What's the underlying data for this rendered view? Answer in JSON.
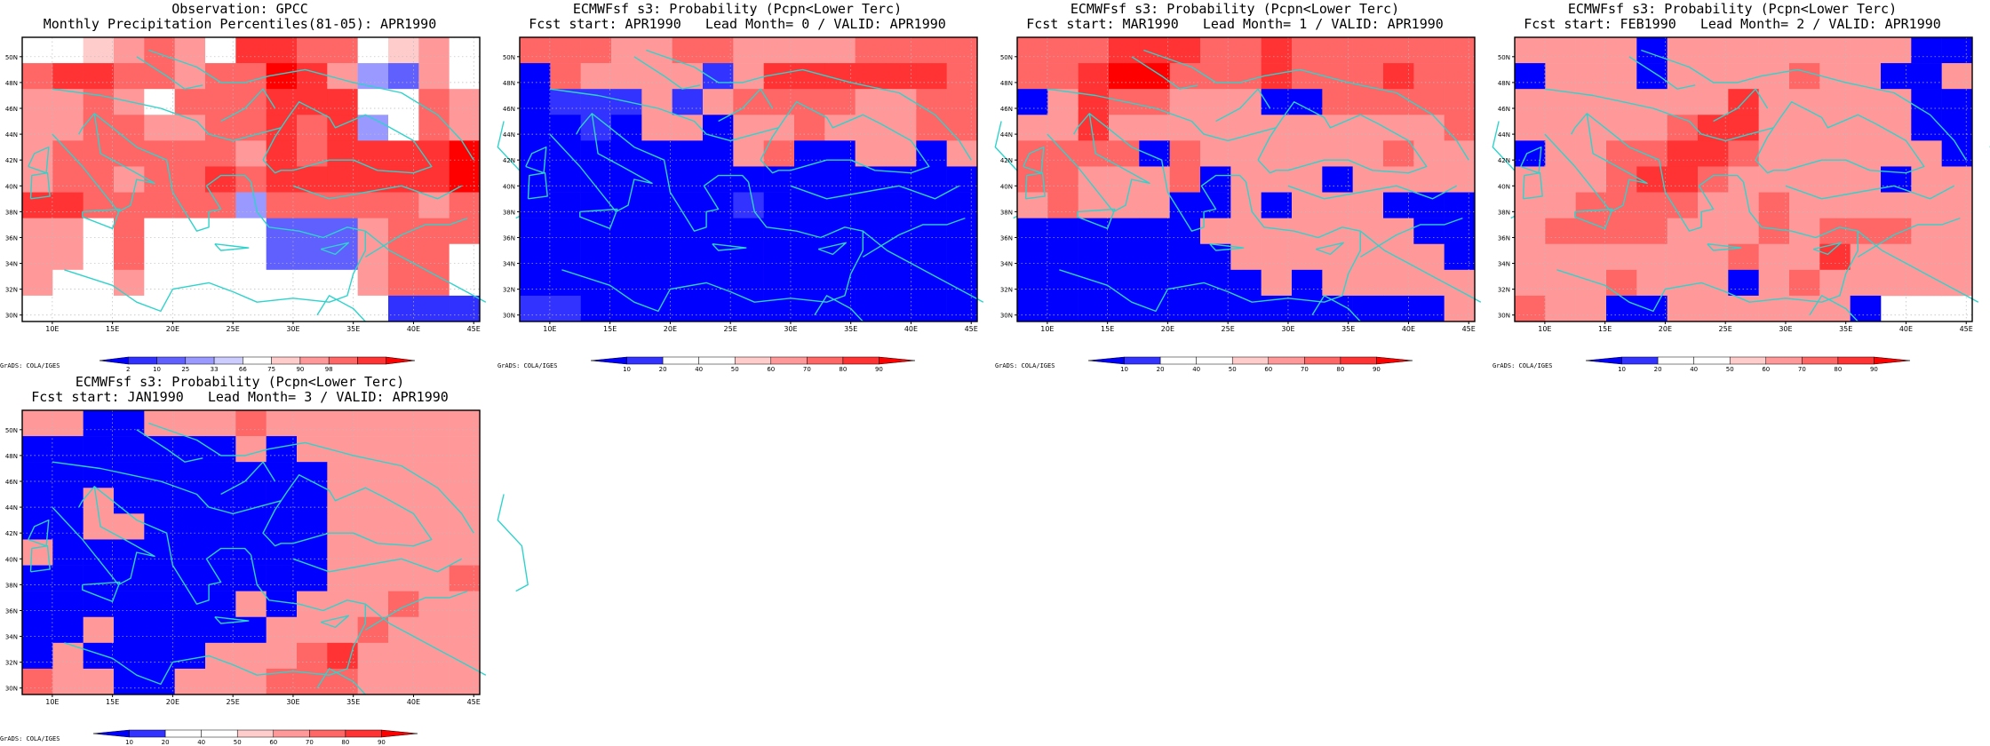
{
  "figure": {
    "credit": "GrADS: COLA/IGES"
  },
  "scales": {
    "percentile": {
      "colors": [
        "#0000ff",
        "#3030ff",
        "#6060ff",
        "#9999ff",
        "#ccccff",
        "#ffffff",
        "#ffcccc",
        "#ff9999",
        "#ff6666",
        "#ff3333",
        "#ff0000"
      ],
      "labels": [
        "2",
        "10",
        "25",
        "33",
        "66",
        "75",
        "90",
        "98"
      ]
    },
    "probability": {
      "colors": [
        "#0000ff",
        "#3333ff",
        "#ffffff",
        "#ffffff",
        "#ffcccc",
        "#ff9999",
        "#ff6666",
        "#ff3333",
        "#ff0000"
      ],
      "labels": [
        "10",
        "20",
        "40",
        "50",
        "60",
        "70",
        "80",
        "90"
      ]
    }
  },
  "colors": {
    "coast": "#2fd3cc",
    "frame": "#000000",
    "grid": "#bbbbbb"
  },
  "chart_data": [
    {
      "type": "heatmap",
      "title": "Observation: GPCC",
      "subtitle": "Monthly Precipitation Percentiles(81-05): APR1990",
      "scale": "percentile",
      "x_ticks": [
        "10E",
        "15E",
        "20E",
        "25E",
        "30E",
        "35E",
        "40E",
        "45E"
      ],
      "y_ticks": [
        "30N",
        "32N",
        "34N",
        "36N",
        "38N",
        "40N",
        "42N",
        "44N",
        "46N",
        "48N",
        "50N"
      ],
      "xlim": [
        7.5,
        45.5
      ],
      "ylim": [
        29.5,
        51.5
      ],
      "grid_cells": [
        "WWRRRRWRRRRRWRR",
        "RRRRRRRRRRRBBRW",
        "RRRRWRRRRRWWWRR",
        "RRRRRRRRRRBWRRR",
        "RRRRRRRRRRRRRRR",
        "RRRRRRRRRRRRRRR",
        "RRRRRBRRWRRRRRR",
        "RRWRWWWWBBBRRRR",
        "RRWRWWWWBBBRRRW",
        "RWWRWWWWWWWRRRW",
        "WWWWWWWWWWWBBBW"
      ],
      "grid_levels": [
        5,
        5,
        6,
        7,
        8,
        7,
        5,
        9,
        9,
        8,
        8,
        5,
        6,
        7,
        5,
        8,
        9,
        9,
        8,
        8,
        7,
        8,
        8,
        10,
        9,
        7,
        3,
        2,
        7,
        5,
        7,
        7,
        8,
        7,
        5,
        8,
        8,
        8,
        9,
        9,
        9,
        5,
        5,
        8,
        7,
        7,
        7,
        8,
        8,
        7,
        7,
        8,
        8,
        9,
        8,
        9,
        3,
        5,
        8,
        7,
        7,
        8,
        8,
        8,
        8,
        8,
        8,
        7,
        9,
        8,
        9,
        9,
        9,
        9,
        10,
        7,
        8,
        8,
        7,
        8,
        8,
        9,
        8,
        9,
        9,
        9,
        9,
        9,
        9,
        10,
        9,
        9,
        8,
        8,
        8,
        8,
        8,
        3,
        8,
        8,
        8,
        8,
        8,
        7,
        8,
        7,
        7,
        5,
        8,
        5,
        5,
        5,
        5,
        2,
        2,
        2,
        7,
        8,
        8,
        8,
        7,
        7,
        5,
        8,
        5,
        5,
        5,
        5,
        2,
        2,
        2,
        7,
        8,
        8,
        5,
        7,
        5,
        5,
        7,
        5,
        5,
        5,
        5,
        5,
        5,
        5,
        7,
        8,
        8,
        5,
        5,
        5,
        5,
        5,
        5,
        5,
        5,
        5,
        5,
        5,
        5,
        5,
        1,
        1,
        1,
        5
      ]
    },
    {
      "type": "heatmap",
      "title": "ECMWFsf s3: Probability (Pcpn<Lower Terc)",
      "subtitle": "Fcst start: APR1990   Lead Month= 0 / VALID: APR1990",
      "scale": "probability",
      "x_ticks": [
        "10E",
        "15E",
        "20E",
        "25E",
        "30E",
        "35E",
        "40E",
        "45E"
      ],
      "y_ticks": [
        "30N",
        "32N",
        "34N",
        "36N",
        "38N",
        "40N",
        "42N",
        "44N",
        "46N",
        "48N",
        "50N"
      ],
      "xlim": [
        7.5,
        45.5
      ],
      "ylim": [
        29.5,
        51.5
      ],
      "grid_levels": [
        6,
        6,
        6,
        5,
        5,
        6,
        6,
        5,
        5,
        5,
        5,
        6,
        6,
        6,
        6,
        0,
        6,
        5,
        5,
        5,
        5,
        1,
        5,
        7,
        7,
        7,
        7,
        7,
        7,
        6,
        0,
        1,
        1,
        1,
        5,
        1,
        5,
        6,
        6,
        6,
        6,
        5,
        5,
        6,
        6,
        0,
        0,
        1,
        0,
        5,
        5,
        0,
        5,
        5,
        6,
        5,
        5,
        5,
        6,
        6,
        0,
        0,
        0,
        0,
        0,
        0,
        0,
        5,
        6,
        0,
        0,
        5,
        5,
        0,
        5,
        0,
        0,
        0,
        0,
        0,
        0,
        0,
        0,
        0,
        0,
        0,
        0,
        0,
        0,
        0,
        0,
        0,
        0,
        0,
        0,
        0,
        0,
        1,
        0,
        0,
        0,
        0,
        0,
        0,
        0,
        0,
        0,
        0,
        0,
        0,
        0,
        0,
        0,
        0,
        0,
        0,
        0,
        0,
        0,
        0,
        0,
        0,
        0,
        0,
        0,
        0,
        0,
        0,
        0,
        0,
        0,
        0,
        0,
        0,
        0,
        0,
        0,
        0,
        0,
        0,
        0,
        0,
        0,
        0,
        0,
        0,
        0,
        0,
        0,
        0,
        1,
        1,
        0,
        0,
        0,
        0,
        0,
        0,
        0,
        0,
        0,
        0,
        0,
        0,
        0
      ]
    },
    {
      "type": "heatmap",
      "title": "ECMWFsf s3: Probability (Pcpn<Lower Terc)",
      "subtitle": "Fcst start: MAR1990   Lead Month= 1 / VALID: APR1990",
      "scale": "probability",
      "x_ticks": [
        "10E",
        "15E",
        "20E",
        "25E",
        "30E",
        "35E",
        "40E",
        "45E"
      ],
      "y_ticks": [
        "30N",
        "32N",
        "34N",
        "36N",
        "38N",
        "40N",
        "42N",
        "44N",
        "46N",
        "48N",
        "50N"
      ],
      "xlim": [
        7.5,
        45.5
      ],
      "ylim": [
        29.5,
        51.5
      ],
      "grid_levels": [
        6,
        6,
        6,
        7,
        7,
        7,
        6,
        6,
        7,
        6,
        6,
        6,
        6,
        6,
        6,
        6,
        6,
        7,
        8,
        8,
        6,
        6,
        6,
        7,
        6,
        6,
        6,
        7,
        6,
        6,
        0,
        5,
        7,
        6,
        6,
        5,
        5,
        5,
        0,
        0,
        6,
        6,
        6,
        6,
        6,
        5,
        5,
        7,
        5,
        5,
        5,
        5,
        5,
        5,
        5,
        5,
        5,
        5,
        5,
        6,
        6,
        6,
        6,
        6,
        0,
        6,
        5,
        5,
        5,
        5,
        5,
        5,
        6,
        5,
        5,
        6,
        6,
        5,
        5,
        5,
        6,
        0,
        5,
        5,
        5,
        0,
        5,
        5,
        5,
        5,
        5,
        6,
        5,
        5,
        5,
        0,
        0,
        5,
        0,
        5,
        5,
        5,
        0,
        0,
        0,
        0,
        0,
        0,
        0,
        0,
        0,
        5,
        5,
        5,
        5,
        5,
        5,
        5,
        0,
        0,
        0,
        0,
        0,
        0,
        0,
        0,
        0,
        5,
        5,
        5,
        5,
        5,
        5,
        5,
        0,
        0,
        0,
        0,
        0,
        0,
        0,
        0,
        0,
        5,
        0,
        5,
        5,
        5,
        5,
        5,
        0,
        0,
        0,
        0,
        0,
        0,
        0,
        0,
        0,
        0,
        0,
        0,
        0,
        0,
        5
      ]
    },
    {
      "type": "heatmap",
      "title": "ECMWFsf s3: Probability (Pcpn<Lower Terc)",
      "subtitle": "Fcst start: FEB1990   Lead Month= 2 / VALID: APR1990",
      "scale": "probability",
      "x_ticks": [
        "10E",
        "15E",
        "20E",
        "25E",
        "30E",
        "35E",
        "40E",
        "45E"
      ],
      "y_ticks": [
        "30N",
        "32N",
        "34N",
        "36N",
        "38N",
        "40N",
        "42N",
        "44N",
        "46N",
        "48N",
        "50N"
      ],
      "xlim": [
        7.5,
        45.5
      ],
      "ylim": [
        29.5,
        51.5
      ],
      "grid_levels": [
        5,
        5,
        5,
        5,
        0,
        5,
        5,
        5,
        5,
        5,
        5,
        5,
        5,
        0,
        0,
        0,
        5,
        5,
        5,
        0,
        5,
        5,
        5,
        5,
        6,
        5,
        5,
        0,
        0,
        5,
        5,
        5,
        5,
        5,
        5,
        5,
        5,
        7,
        5,
        5,
        5,
        5,
        5,
        0,
        0,
        5,
        5,
        5,
        5,
        5,
        6,
        7,
        7,
        5,
        5,
        5,
        5,
        5,
        0,
        0,
        0,
        5,
        5,
        6,
        6,
        7,
        7,
        6,
        5,
        5,
        5,
        5,
        5,
        5,
        0,
        5,
        5,
        5,
        6,
        7,
        7,
        6,
        5,
        5,
        5,
        5,
        5,
        0,
        5,
        5,
        5,
        5,
        6,
        6,
        6,
        6,
        5,
        5,
        6,
        5,
        5,
        5,
        5,
        5,
        5,
        5,
        6,
        6,
        6,
        6,
        5,
        5,
        5,
        6,
        5,
        6,
        6,
        6,
        5,
        5,
        5,
        5,
        5,
        5,
        5,
        5,
        5,
        6,
        5,
        5,
        7,
        5,
        5,
        5,
        5,
        5,
        5,
        5,
        6,
        5,
        5,
        5,
        0,
        5,
        6,
        5,
        5,
        5,
        5,
        5,
        6,
        5,
        5,
        0,
        0,
        5,
        5,
        5,
        5,
        5,
        5,
        0
      ]
    },
    {
      "type": "heatmap",
      "title": "ECMWFsf s3: Probability (Pcpn<Lower Terc)",
      "subtitle": "Fcst start: JAN1990   Lead Month= 3 / VALID: APR1990",
      "scale": "probability",
      "x_ticks": [
        "10E",
        "15E",
        "20E",
        "25E",
        "30E",
        "35E",
        "40E",
        "45E"
      ],
      "y_ticks": [
        "30N",
        "32N",
        "34N",
        "36N",
        "38N",
        "40N",
        "42N",
        "44N",
        "46N",
        "48N",
        "50N"
      ],
      "xlim": [
        7.5,
        45.5
      ],
      "ylim": [
        29.5,
        51.5
      ],
      "grid_levels": [
        5,
        5,
        0,
        0,
        5,
        5,
        5,
        6,
        5,
        5,
        5,
        5,
        5,
        5,
        5,
        0,
        0,
        0,
        0,
        0,
        0,
        0,
        5,
        0,
        5,
        5,
        5,
        5,
        5,
        5,
        0,
        0,
        0,
        0,
        0,
        0,
        0,
        0,
        0,
        0,
        5,
        5,
        5,
        5,
        5,
        0,
        0,
        5,
        0,
        0,
        0,
        0,
        0,
        0,
        0,
        5,
        5,
        5,
        5,
        5,
        0,
        0,
        5,
        5,
        0,
        0,
        0,
        0,
        0,
        0,
        5,
        5,
        5,
        5,
        5,
        5,
        0,
        0,
        0,
        0,
        0,
        0,
        0,
        0,
        0,
        5,
        5,
        5,
        5,
        5,
        0,
        0,
        0,
        0,
        0,
        0,
        0,
        0,
        0,
        0,
        5,
        5,
        5,
        5,
        6,
        0,
        0,
        0,
        0,
        0,
        0,
        0,
        5,
        0,
        5,
        5,
        5,
        6,
        5,
        5,
        0,
        0,
        5,
        0,
        0,
        0,
        0,
        0,
        5,
        5,
        5,
        6,
        5,
        5,
        5,
        0,
        5,
        0,
        0,
        0,
        0,
        5,
        5,
        5,
        6,
        7,
        5,
        5,
        5,
        5,
        6,
        5,
        5,
        0,
        0,
        5,
        5,
        5,
        6,
        6,
        6,
        5,
        5,
        5,
        5
      ]
    }
  ]
}
